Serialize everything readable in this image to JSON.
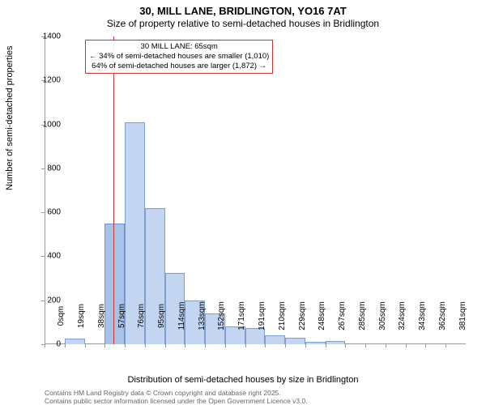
{
  "title_main": "30, MILL LANE, BRIDLINGTON, YO16 7AT",
  "title_sub": "Size of property relative to semi-detached houses in Bridlington",
  "y_axis_label": "Number of semi-detached properties",
  "x_axis_label": "Distribution of semi-detached houses by size in Bridlington",
  "chart": {
    "type": "histogram",
    "background_color": "#ffffff",
    "axis_color": "#999999",
    "bar_fill_color": "#c3d5f0",
    "bar_stroke_color": "#7f9ecf",
    "highlight_bar_fill_color": "#a8c2ea",
    "highlight_bar_stroke_color": "#6c90c9",
    "marker_line_color": "#d1322d",
    "annotation_border_color": "#d1322d",
    "y_max": 1400,
    "y_tick_step": 200,
    "x_categories": [
      "0sqm",
      "19sqm",
      "38sqm",
      "57sqm",
      "76sqm",
      "95sqm",
      "114sqm",
      "133sqm",
      "152sqm",
      "171sqm",
      "191sqm",
      "210sqm",
      "229sqm",
      "248sqm",
      "267sqm",
      "285sqm",
      "305sqm",
      "324sqm",
      "343sqm",
      "362sqm",
      "381sqm"
    ],
    "values": [
      0,
      25,
      0,
      550,
      1010,
      620,
      325,
      200,
      140,
      80,
      75,
      40,
      30,
      10,
      15,
      0,
      0,
      0,
      0,
      0,
      0
    ],
    "highlight_index": 3,
    "marker_value_sqm": 65,
    "x_min_sqm": 0,
    "x_step_sqm": 19
  },
  "annotation": {
    "line1": "30 MILL LANE: 65sqm",
    "line2": "← 34% of semi-detached houses are smaller (1,010)",
    "line3": "64% of semi-detached houses are larger (1,872) →"
  },
  "footer": {
    "line1": "Contains HM Land Registry data © Crown copyright and database right 2025.",
    "line2": "Contains public sector information licensed under the Open Government Licence v3.0."
  }
}
